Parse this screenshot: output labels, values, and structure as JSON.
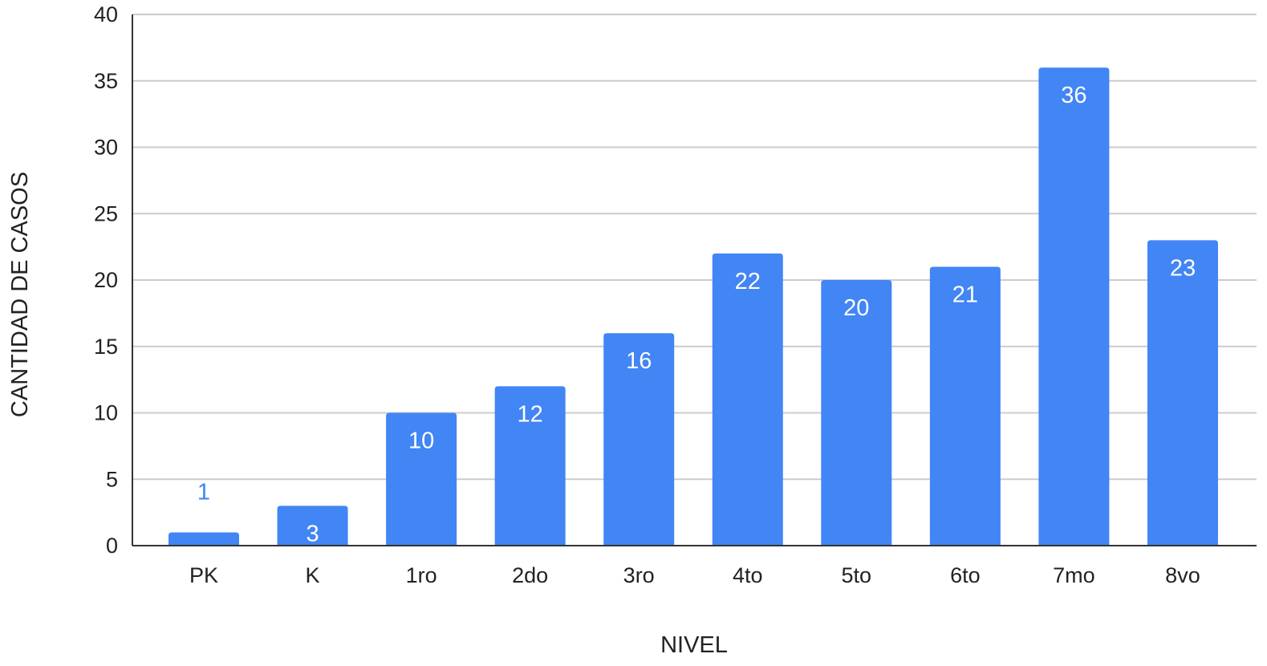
{
  "chart_data": {
    "type": "bar",
    "title": "",
    "xlabel": "NIVEL",
    "ylabel": "CANTIDAD DE CASOS",
    "categories": [
      "PK",
      "K",
      "1ro",
      "2do",
      "3ro",
      "4to",
      "5to",
      "6to",
      "7mo",
      "8vo"
    ],
    "values": [
      1,
      3,
      10,
      12,
      16,
      22,
      20,
      21,
      36,
      23
    ],
    "ylim": [
      0,
      40
    ],
    "yticks": [
      "0",
      "5",
      "10",
      "15",
      "20",
      "25",
      "30",
      "35",
      "40"
    ],
    "data_labels": [
      "1",
      "3",
      "10",
      "12",
      "16",
      "22",
      "20",
      "21",
      "36",
      "23"
    ],
    "grid": true,
    "legend": "none",
    "colors": {
      "bar": "#4285f4",
      "label_inside": "#ffffff",
      "label_outside": "#4285f4",
      "grid": "#cccccc",
      "axis": "#333333"
    }
  }
}
